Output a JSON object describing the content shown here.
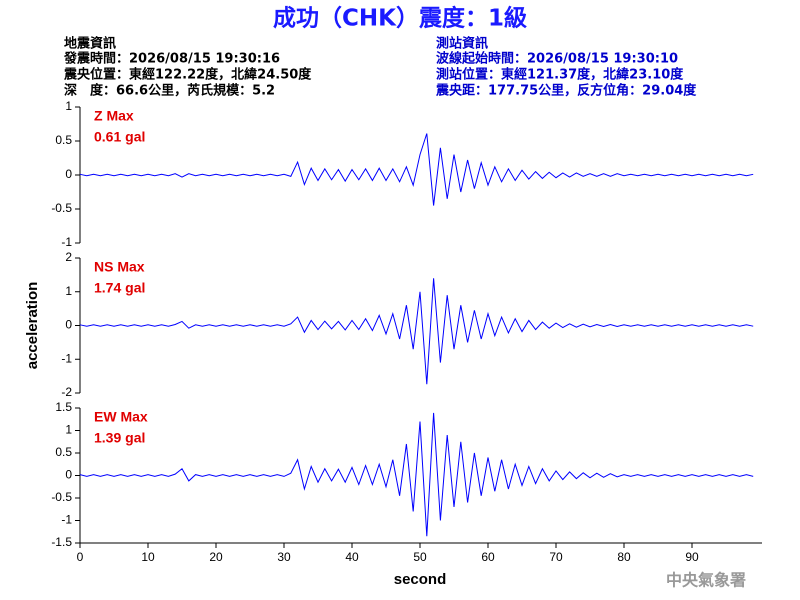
{
  "header": {
    "title": "成功（CHK）震度：1級",
    "left": [
      "地震資訊",
      "發震時間：2026/08/15 19:30:16",
      "震央位置：東經122.22度，北緯24.50度",
      "深　度：66.6公里，芮氏規模：5.2"
    ],
    "right": [
      "測站資訊",
      "波線起始時間：2026/08/15 19:30:10",
      "測站位置：東經121.37度，北緯23.10度",
      "震央距：177.75公里，反方位角：29.04度"
    ]
  },
  "footer": "中央氣象署",
  "chart_data": [
    {
      "type": "line",
      "annotations": [
        "Z Max",
        "0.61 gal"
      ],
      "color": "#0000ff",
      "xlim": [
        0,
        100
      ],
      "ylim": [
        -1,
        1
      ],
      "yticks": [
        -1,
        -0.5,
        0,
        0.5,
        1
      ],
      "x": [
        0,
        1,
        2,
        3,
        4,
        5,
        6,
        7,
        8,
        9,
        10,
        11,
        12,
        13,
        14,
        15,
        16,
        17,
        18,
        19,
        20,
        21,
        22,
        23,
        24,
        25,
        26,
        27,
        28,
        29,
        30,
        31,
        32,
        33,
        34,
        35,
        36,
        37,
        38,
        39,
        40,
        41,
        42,
        43,
        44,
        45,
        46,
        47,
        48,
        49,
        50,
        51,
        52,
        53,
        54,
        55,
        56,
        57,
        58,
        59,
        60,
        61,
        62,
        63,
        64,
        65,
        66,
        67,
        68,
        69,
        70,
        71,
        72,
        73,
        74,
        75,
        76,
        77,
        78,
        79,
        80,
        81,
        82,
        83,
        84,
        85,
        86,
        87,
        88,
        89,
        90,
        91,
        92,
        93,
        94,
        95,
        96,
        97,
        98,
        99
      ],
      "values": [
        0.01,
        -0.01,
        0.01,
        -0.01,
        0.01,
        -0.01,
        0.01,
        -0.01,
        0.01,
        -0.01,
        0.01,
        -0.01,
        0.01,
        -0.01,
        0.02,
        -0.03,
        0.02,
        -0.01,
        0.01,
        -0.01,
        0.01,
        -0.01,
        0.01,
        -0.01,
        0.01,
        -0.01,
        0.01,
        -0.01,
        0.01,
        -0.01,
        0.01,
        -0.02,
        0.19,
        -0.14,
        0.1,
        -0.08,
        0.09,
        -0.07,
        0.08,
        -0.09,
        0.08,
        -0.07,
        0.09,
        -0.08,
        0.1,
        -0.08,
        0.09,
        -0.1,
        0.12,
        -0.15,
        0.3,
        0.61,
        -0.45,
        0.4,
        -0.35,
        0.3,
        -0.25,
        0.22,
        -0.2,
        0.18,
        -0.15,
        0.12,
        -0.1,
        0.09,
        -0.08,
        0.07,
        -0.06,
        0.05,
        -0.05,
        0.04,
        -0.04,
        0.03,
        -0.03,
        0.03,
        -0.02,
        0.02,
        -0.02,
        0.02,
        -0.02,
        0.02,
        -0.01,
        0.01,
        -0.01,
        0.01,
        -0.01,
        0.01,
        -0.01,
        0.01,
        -0.01,
        0.01,
        -0.01,
        0.01,
        -0.01,
        0.01,
        -0.01,
        0.01,
        -0.01,
        0.01,
        -0.01,
        0.01
      ]
    },
    {
      "type": "line",
      "annotations": [
        "NS Max",
        "1.74 gal"
      ],
      "color": "#0000ff",
      "ylabel": "acceleration",
      "xlim": [
        0,
        100
      ],
      "ylim": [
        -2,
        2
      ],
      "yticks": [
        -2,
        -1,
        0,
        1,
        2
      ],
      "x": [
        0,
        1,
        2,
        3,
        4,
        5,
        6,
        7,
        8,
        9,
        10,
        11,
        12,
        13,
        14,
        15,
        16,
        17,
        18,
        19,
        20,
        21,
        22,
        23,
        24,
        25,
        26,
        27,
        28,
        29,
        30,
        31,
        32,
        33,
        34,
        35,
        36,
        37,
        38,
        39,
        40,
        41,
        42,
        43,
        44,
        45,
        46,
        47,
        48,
        49,
        50,
        51,
        52,
        53,
        54,
        55,
        56,
        57,
        58,
        59,
        60,
        61,
        62,
        63,
        64,
        65,
        66,
        67,
        68,
        69,
        70,
        71,
        72,
        73,
        74,
        75,
        76,
        77,
        78,
        79,
        80,
        81,
        82,
        83,
        84,
        85,
        86,
        87,
        88,
        89,
        90,
        91,
        92,
        93,
        94,
        95,
        96,
        97,
        98,
        99
      ],
      "values": [
        0.02,
        -0.02,
        0.02,
        -0.02,
        0.02,
        -0.02,
        0.02,
        -0.02,
        0.02,
        -0.02,
        0.02,
        -0.02,
        0.02,
        -0.02,
        0.03,
        0.12,
        -0.08,
        0.02,
        -0.02,
        0.02,
        -0.02,
        0.02,
        -0.02,
        0.02,
        -0.02,
        0.02,
        -0.02,
        0.02,
        -0.02,
        0.02,
        -0.02,
        0.05,
        0.25,
        -0.2,
        0.15,
        -0.12,
        0.13,
        -0.1,
        0.12,
        -0.13,
        0.15,
        -0.12,
        0.2,
        -0.15,
        0.3,
        -0.25,
        0.35,
        -0.4,
        0.6,
        -0.7,
        1.0,
        -1.74,
        1.4,
        -1.1,
        0.9,
        -0.7,
        0.6,
        -0.5,
        0.45,
        -0.4,
        0.35,
        -0.3,
        0.25,
        -0.22,
        0.2,
        -0.18,
        0.15,
        -0.12,
        0.1,
        -0.08,
        0.07,
        -0.06,
        0.05,
        -0.05,
        0.04,
        -0.04,
        0.03,
        -0.03,
        0.03,
        -0.03,
        0.02,
        -0.02,
        0.02,
        -0.02,
        0.02,
        -0.02,
        0.02,
        -0.02,
        0.02,
        -0.02,
        0.02,
        -0.02,
        0.02,
        -0.02,
        0.02,
        -0.02,
        0.02,
        -0.02,
        0.02,
        -0.02
      ]
    },
    {
      "type": "line",
      "annotations": [
        "EW Max",
        "1.39 gal"
      ],
      "color": "#0000ff",
      "xlabel": "second",
      "xlim": [
        0,
        100
      ],
      "xticks": [
        0,
        10,
        20,
        30,
        40,
        50,
        60,
        70,
        80,
        90
      ],
      "ylim": [
        -1.5,
        1.5
      ],
      "yticks": [
        -1.5,
        -1,
        -0.5,
        0,
        0.5,
        1,
        1.5
      ],
      "x": [
        0,
        1,
        2,
        3,
        4,
        5,
        6,
        7,
        8,
        9,
        10,
        11,
        12,
        13,
        14,
        15,
        16,
        17,
        18,
        19,
        20,
        21,
        22,
        23,
        24,
        25,
        26,
        27,
        28,
        29,
        30,
        31,
        32,
        33,
        34,
        35,
        36,
        37,
        38,
        39,
        40,
        41,
        42,
        43,
        44,
        45,
        46,
        47,
        48,
        49,
        50,
        51,
        52,
        53,
        54,
        55,
        56,
        57,
        58,
        59,
        60,
        61,
        62,
        63,
        64,
        65,
        66,
        67,
        68,
        69,
        70,
        71,
        72,
        73,
        74,
        75,
        76,
        77,
        78,
        79,
        80,
        81,
        82,
        83,
        84,
        85,
        86,
        87,
        88,
        89,
        90,
        91,
        92,
        93,
        94,
        95,
        96,
        97,
        98,
        99
      ],
      "values": [
        0.02,
        -0.02,
        0.02,
        -0.02,
        0.02,
        -0.02,
        0.02,
        -0.02,
        0.02,
        -0.02,
        0.02,
        -0.02,
        0.02,
        -0.02,
        0.03,
        0.15,
        -0.12,
        0.02,
        -0.02,
        0.02,
        -0.02,
        0.02,
        -0.02,
        0.02,
        -0.02,
        0.02,
        -0.02,
        0.02,
        -0.02,
        0.02,
        -0.02,
        0.05,
        0.35,
        -0.3,
        0.2,
        -0.15,
        0.15,
        -0.12,
        0.14,
        -0.15,
        0.18,
        -0.2,
        0.22,
        -0.2,
        0.25,
        -0.25,
        0.35,
        -0.45,
        0.7,
        -0.8,
        1.2,
        -1.35,
        1.39,
        -1.0,
        0.9,
        -0.7,
        0.75,
        -0.6,
        0.5,
        -0.45,
        0.4,
        -0.35,
        0.35,
        -0.3,
        0.25,
        -0.22,
        0.2,
        -0.18,
        0.15,
        -0.12,
        0.1,
        -0.09,
        0.08,
        -0.07,
        0.06,
        -0.05,
        0.05,
        -0.04,
        0.04,
        -0.03,
        0.02,
        -0.02,
        0.02,
        -0.02,
        0.02,
        -0.02,
        0.02,
        -0.02,
        0.02,
        -0.02,
        0.02,
        -0.02,
        0.02,
        -0.02,
        0.02,
        -0.02,
        0.02,
        -0.02,
        0.02,
        -0.02
      ]
    }
  ]
}
